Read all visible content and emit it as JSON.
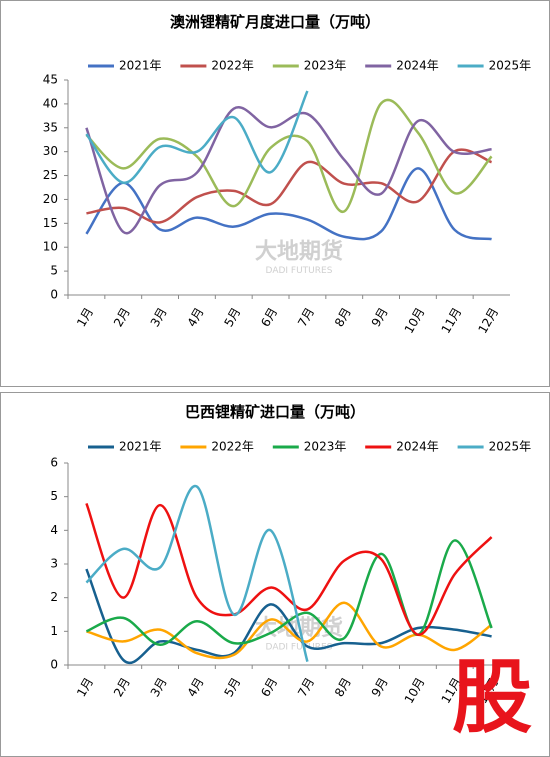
{
  "chart_data": [
    {
      "type": "line",
      "title": "澳洲锂精矿月度进口量（万吨）",
      "categories": [
        "1月",
        "2月",
        "3月",
        "4月",
        "5月",
        "6月",
        "7月",
        "8月",
        "9月",
        "10月",
        "11月",
        "12月"
      ],
      "ylim": [
        0,
        45
      ],
      "yticks": [
        0,
        5,
        10,
        15,
        20,
        25,
        30,
        35,
        40,
        45
      ],
      "watermark": "大地期货",
      "watermark_sub": "DADI FUTURES",
      "series": [
        {
          "name": "2021年",
          "color": "#4472c4",
          "values": [
            12.8,
            23.5,
            13.7,
            16.2,
            14.3,
            17.0,
            15.8,
            12.2,
            13.3,
            26.5,
            13.6,
            11.7
          ]
        },
        {
          "name": "2022年",
          "color": "#c0504d",
          "values": [
            17.1,
            18.2,
            15.2,
            20.5,
            21.8,
            19.0,
            27.8,
            23.3,
            23.4,
            19.6,
            30.1,
            27.8
          ]
        },
        {
          "name": "2023年",
          "color": "#9bbb59",
          "values": [
            33.5,
            26.5,
            32.7,
            29.0,
            18.6,
            30.8,
            32.2,
            17.5,
            40.1,
            34.0,
            21.3,
            29.0
          ]
        },
        {
          "name": "2024年",
          "color": "#8064a2",
          "values": [
            35.0,
            13.2,
            23.0,
            25.6,
            39.0,
            35.1,
            37.9,
            28.3,
            21.2,
            36.4,
            29.9,
            30.5
          ]
        },
        {
          "name": "2025年",
          "color": "#4bacc6",
          "values": [
            33.7,
            23.5,
            31.0,
            30.0,
            37.2,
            25.7,
            42.7,
            null,
            null,
            null,
            null,
            null
          ]
        }
      ]
    },
    {
      "type": "line",
      "title": "巴西锂精矿进口量（万吨）",
      "categories": [
        "1月",
        "2月",
        "3月",
        "4月",
        "5月",
        "6月",
        "7月",
        "8月",
        "9月",
        "10月",
        "11月",
        "12月"
      ],
      "ylim": [
        0,
        6
      ],
      "yticks": [
        0,
        1,
        2,
        3,
        4,
        5,
        6
      ],
      "watermark": "大地期货",
      "watermark_sub": "DADI FUTURES",
      "series": [
        {
          "name": "2021年",
          "color": "#17608f",
          "values": [
            2.85,
            0.15,
            0.7,
            0.45,
            0.35,
            1.8,
            0.55,
            0.65,
            0.65,
            1.1,
            1.05,
            0.85
          ]
        },
        {
          "name": "2022年",
          "color": "#ffa500",
          "values": [
            1.0,
            0.7,
            1.05,
            0.35,
            0.3,
            1.35,
            0.7,
            1.85,
            0.55,
            0.9,
            0.45,
            1.2
          ]
        },
        {
          "name": "2023年",
          "color": "#1aaa4a",
          "values": [
            1.0,
            1.4,
            0.6,
            1.3,
            0.65,
            0.95,
            1.55,
            0.8,
            3.3,
            0.9,
            3.7,
            1.1
          ]
        },
        {
          "name": "2024年",
          "color": "#ee1111",
          "values": [
            4.8,
            2.0,
            4.75,
            2.0,
            1.5,
            2.3,
            1.65,
            3.1,
            3.15,
            0.9,
            2.7,
            3.8
          ]
        },
        {
          "name": "2025年",
          "color": "#4bacc6",
          "values": [
            2.45,
            3.45,
            2.9,
            5.3,
            1.5,
            4.0,
            0.1,
            null,
            null,
            null,
            null,
            null
          ]
        }
      ]
    }
  ],
  "badge": "股"
}
